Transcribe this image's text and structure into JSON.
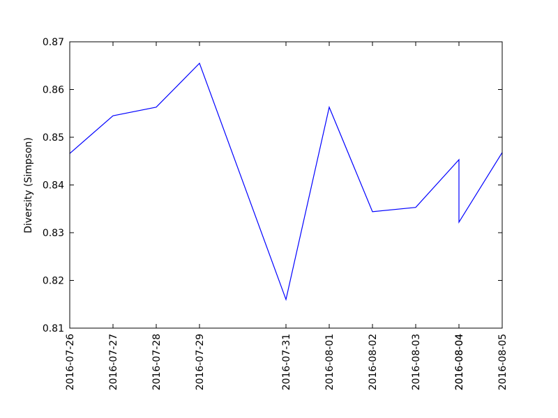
{
  "chart_data": {
    "type": "line",
    "ylabel": "Diversity (Simpson)",
    "x": [
      "2016-07-26",
      "2016-07-27",
      "2016-07-28",
      "2016-07-29",
      "2016-07-31",
      "2016-08-01",
      "2016-08-02",
      "2016-08-03",
      "2016-08-04",
      "2016-08-04",
      "2016-08-05"
    ],
    "series": [
      {
        "color": "#0000ff",
        "values": [
          0.8466,
          0.8545,
          0.8563,
          0.8655,
          0.816,
          0.8563,
          0.8344,
          0.8353,
          0.8453,
          0.8322,
          0.8468
        ]
      }
    ],
    "xlim": [
      "2016-07-26",
      "2016-08-05"
    ],
    "xticks": [
      "2016-07-26",
      "2016-07-27",
      "2016-07-28",
      "2016-07-29",
      "2016-07-31",
      "2016-08-01",
      "2016-08-02",
      "2016-08-03",
      "2016-08-04",
      "2016-08-04",
      "2016-08-05"
    ],
    "ylim": [
      0.81,
      0.87
    ],
    "yticks": [
      0.81,
      0.82,
      0.83,
      0.84,
      0.85,
      0.86,
      0.87
    ]
  }
}
